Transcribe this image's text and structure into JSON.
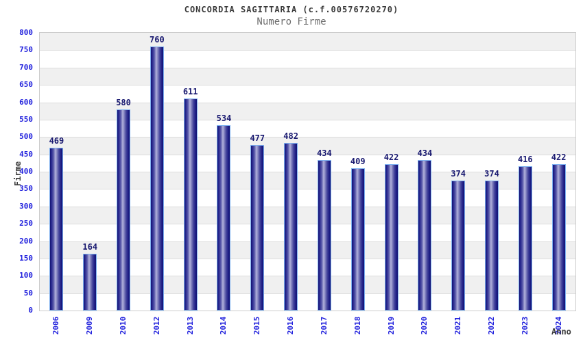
{
  "header": {
    "title": "CONCORDIA SAGITTARIA (c.f.00576720270)",
    "subtitle": "Numero Firme"
  },
  "chart_data": {
    "type": "bar",
    "title": "CONCORDIA SAGITTARIA (c.f.00576720270)",
    "subtitle": "Numero Firme",
    "xlabel": "Anno",
    "ylabel": "Firme",
    "categories": [
      "2006",
      "2009",
      "2010",
      "2012",
      "2013",
      "2014",
      "2015",
      "2016",
      "2017",
      "2018",
      "2019",
      "2020",
      "2021",
      "2022",
      "2023",
      "2024"
    ],
    "values": [
      469,
      164,
      580,
      760,
      611,
      534,
      477,
      482,
      434,
      409,
      422,
      434,
      374,
      374,
      416,
      422
    ],
    "ylim": [
      0,
      800
    ],
    "ytick_step": 50,
    "grid": "horizontal-bands",
    "legend_position": "none",
    "bar_value_labels": true
  },
  "colors": {
    "tick_label": "#2222dd",
    "value_label": "#191970",
    "title": "#3a3a3a",
    "subtitle": "#6e6e6e",
    "axis_label": "#3a3a3a",
    "bar_dark": "#131370",
    "bar_light": "#b2b2dc",
    "bar_outline": "#7db0f0",
    "band_gray": "#f0f0f0",
    "band_white": "#ffffff",
    "gridline": "#dcdcdc",
    "plot_border": "#cccccc",
    "background": "#ffffff"
  }
}
